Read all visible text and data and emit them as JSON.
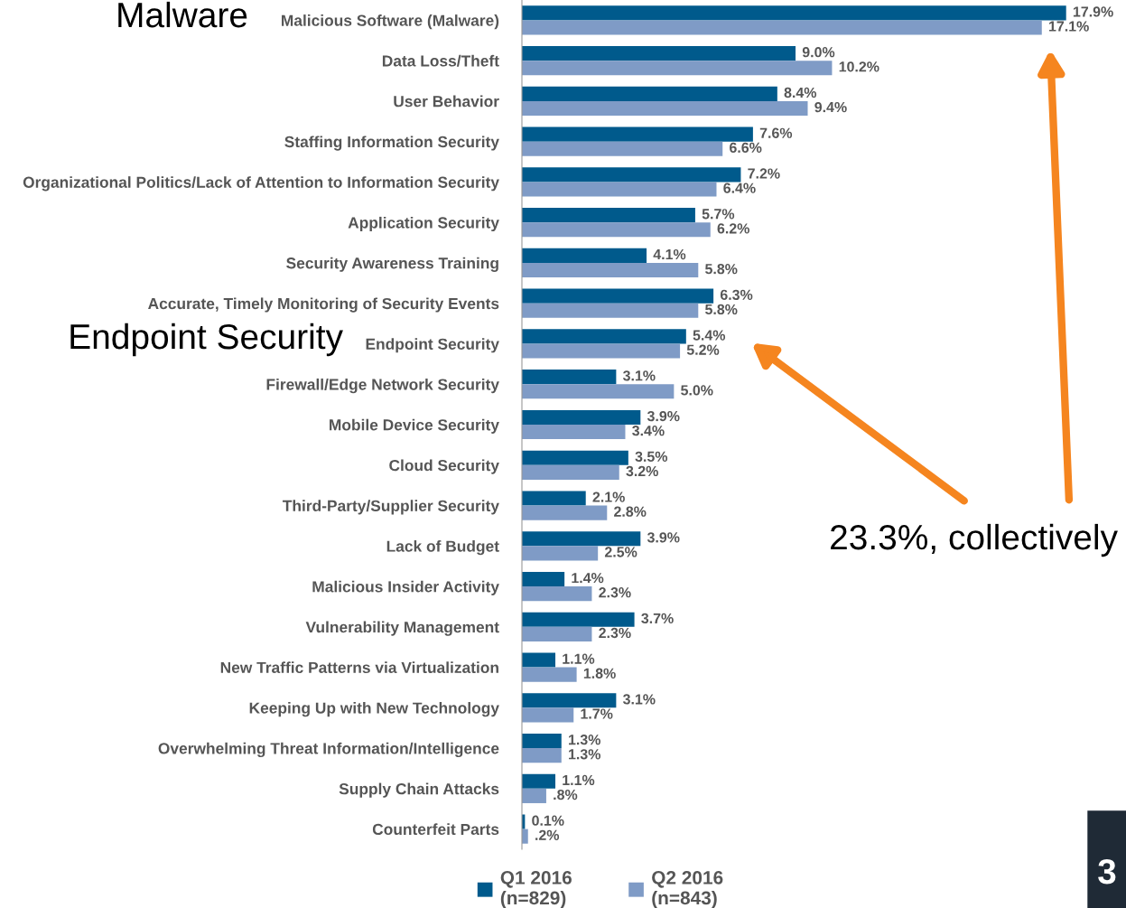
{
  "chart_data": {
    "type": "bar",
    "orientation": "horizontal",
    "categories": [
      "Malicious Software (Malware)",
      "Data Loss/Theft",
      "User Behavior",
      "Staffing Information Security",
      "Organizational Politics/Lack of Attention to Information Security",
      "Application Security",
      "Security Awareness Training",
      "Accurate, Timely Monitoring of Security Events",
      "Endpoint Security",
      "Firewall/Edge Network Security",
      "Mobile Device Security",
      "Cloud Security",
      "Third-Party/Supplier Security",
      "Lack of Budget",
      "Malicious Insider Activity",
      "Vulnerability Management",
      "New Traffic Patterns via Virtualization",
      "Keeping Up with New Technology",
      "Overwhelming Threat Information/Intelligence",
      "Supply Chain Attacks",
      "Counterfeit Parts"
    ],
    "series": [
      {
        "name": "Q1 2016\n(n=829)",
        "color": "#005a8c",
        "values": [
          17.9,
          9.0,
          8.4,
          7.6,
          7.2,
          5.7,
          4.1,
          6.3,
          5.4,
          3.1,
          3.9,
          3.5,
          2.1,
          3.9,
          1.4,
          3.7,
          1.1,
          3.1,
          1.3,
          1.1,
          0.1
        ],
        "value_labels": [
          "17.9%",
          "9.0%",
          "8.4%",
          "7.6%",
          "7.2%",
          "5.7%",
          "4.1%",
          "6.3%",
          "5.4%",
          "3.1%",
          "3.9%",
          "3.5%",
          "2.1%",
          "3.9%",
          "1.4%",
          "3.7%",
          "1.1%",
          "3.1%",
          "1.3%",
          "1.1%",
          "0.1%"
        ]
      },
      {
        "name": "Q2 2016\n(n=843)",
        "color": "#7f9bc6",
        "values": [
          17.1,
          10.2,
          9.4,
          6.6,
          6.4,
          6.2,
          5.8,
          5.8,
          5.2,
          5.0,
          3.4,
          3.2,
          2.8,
          2.5,
          2.3,
          2.3,
          1.8,
          1.7,
          1.3,
          0.8,
          0.2
        ],
        "value_labels": [
          "17.1%",
          "10.2%",
          "9.4%",
          "6.6%",
          "6.4%",
          "6.2%",
          "5.8%",
          "5.8%",
          "5.2%",
          "5.0%",
          "3.4%",
          "3.2%",
          "2.8%",
          "2.5%",
          "2.3%",
          "2.3%",
          "1.8%",
          "1.7%",
          "1.3%",
          ".8%",
          ".2%"
        ]
      }
    ],
    "annotations": [
      "Malware",
      "Endpoint Security",
      "23.3%, collectively",
      "3"
    ],
    "legend": "bottom",
    "grid": false
  }
}
